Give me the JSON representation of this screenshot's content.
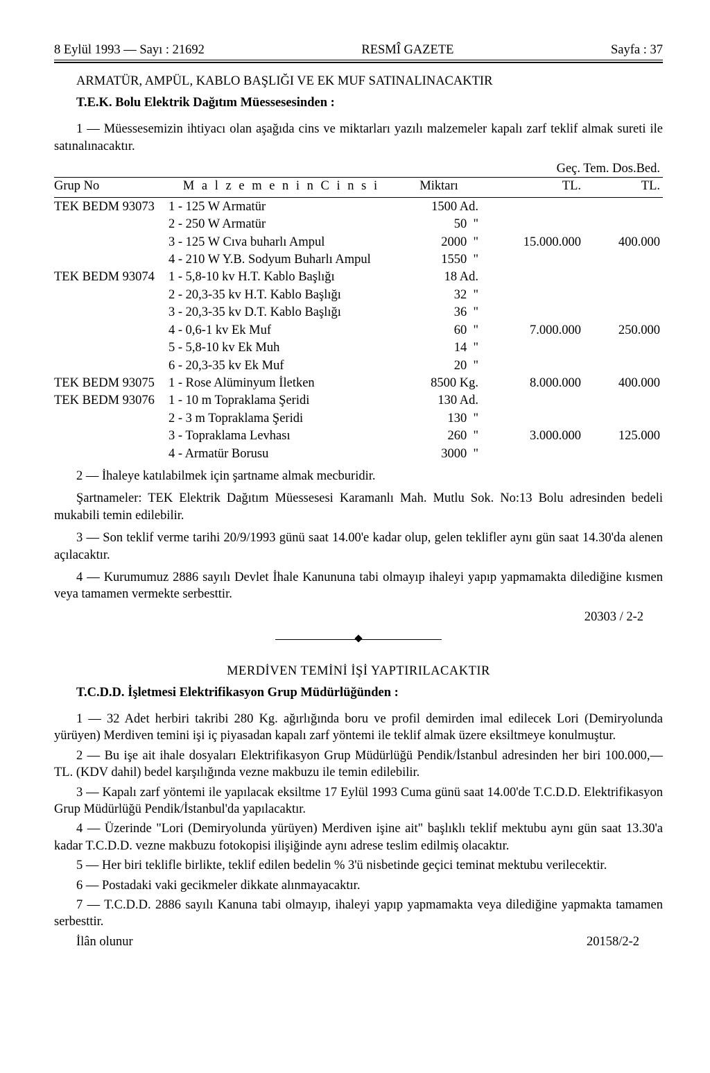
{
  "header": {
    "left": "8 Eylül 1993 — Sayı : 21692",
    "center": "RESMÎ GAZETE",
    "right": "Sayfa : 37"
  },
  "notice1": {
    "title": "ARMATÜR, AMPÜL, KABLO BAŞLIĞI VE EK MUF SATINALINACAKTIR",
    "subtitle": "T.E.K. Bolu Elektrik Dağıtım Müessesesinden :",
    "intro": "1 — Müessesemizin ihtiyacı olan aşağıda cins ve miktarları yazılı malzemeler kapalı zarf teklif almak sureti ile satınalınacaktır.",
    "tableHeader": {
      "group": "Grup No",
      "item": "M a l z e m e n i n   C i n s i",
      "qty": "Miktarı",
      "aboveRight": "Geç. Tem.   Dos.Bed.",
      "p1": "TL.",
      "p2": "TL."
    },
    "rows": [
      {
        "group": "TEK BEDM 93073",
        "item": "1 - 125 W Armatür",
        "qty": "1500 Ad.",
        "p1": "",
        "p2": ""
      },
      {
        "group": "",
        "item": "2 - 250 W Armatür",
        "qty": "50  \"",
        "p1": "",
        "p2": ""
      },
      {
        "group": "",
        "item": "3 - 125 W Cıva buharlı Ampul",
        "qty": "2000  \"",
        "p1": "15.000.000",
        "p2": "400.000"
      },
      {
        "group": "",
        "item": "4 - 210 W Y.B. Sodyum Buharlı Ampul",
        "qty": "1550  \"",
        "p1": "",
        "p2": ""
      },
      {
        "group": "TEK BEDM 93074",
        "item": "1 - 5,8-10 kv H.T. Kablo Başlığı",
        "qty": "18 Ad.",
        "p1": "",
        "p2": ""
      },
      {
        "group": "",
        "item": "2 - 20,3-35 kv H.T. Kablo Başlığı",
        "qty": "32  \"",
        "p1": "",
        "p2": ""
      },
      {
        "group": "",
        "item": "3 - 20,3-35 kv D.T. Kablo Başlığı",
        "qty": "36  \"",
        "p1": "",
        "p2": ""
      },
      {
        "group": "",
        "item": "4 - 0,6-1 kv Ek Muf",
        "qty": "60  \"",
        "p1": "7.000.000",
        "p2": "250.000"
      },
      {
        "group": "",
        "item": "5 - 5,8-10 kv Ek Muh",
        "qty": "14  \"",
        "p1": "",
        "p2": ""
      },
      {
        "group": "",
        "item": "6 - 20,3-35 kv Ek Muf",
        "qty": "20  \"",
        "p1": "",
        "p2": ""
      },
      {
        "group": "TEK BEDM 93075",
        "item": "1 - Rose Alüminyum İletken",
        "qty": "8500 Kg.",
        "p1": "8.000.000",
        "p2": "400.000"
      },
      {
        "group": "TEK BEDM 93076",
        "item": "1 - 10 m Topraklama Şeridi",
        "qty": "130 Ad.",
        "p1": "",
        "p2": ""
      },
      {
        "group": "",
        "item": "2 -  3 m Topraklama Şeridi",
        "qty": "130  \"",
        "p1": "",
        "p2": ""
      },
      {
        "group": "",
        "item": "3 - Topraklama Levhası",
        "qty": "260  \"",
        "p1": "3.000.000",
        "p2": "125.000"
      },
      {
        "group": "",
        "item": "4 - Armatür Borusu",
        "qty": "3000  \"",
        "p1": "",
        "p2": ""
      }
    ],
    "p2": "2 — İhaleye katılabilmek için şartname almak mecburidir.",
    "p3": "Şartnameler: TEK Elektrik Dağıtım Müessesesi Karamanlı Mah. Mutlu Sok. No:13 Bolu adresinden bedeli mukabili temin edilebilir.",
    "p4": "3 — Son teklif verme tarihi 20/9/1993 günü saat 14.00'e kadar olup, gelen teklifler aynı gün saat 14.30'da alenen açılacaktır.",
    "p5": "4 — Kurumumuz 2886 sayılı Devlet İhale Kanununa tabi olmayıp ihaleyi yapıp yapmamakta dilediğine kısmen veya tamamen vermekte serbesttir.",
    "ref": "20303 / 2-2"
  },
  "notice2": {
    "title": "MERDİVEN TEMİNİ İŞİ YAPTIRILACAKTIR",
    "subtitle": "T.C.D.D. İşletmesi Elektrifikasyon Grup Müdürlüğünden :",
    "p1": "1 — 32 Adet herbiri takribi 280 Kg. ağırlığında boru ve profil demirden imal edilecek Lori (Demiryolunda yürüyen) Merdiven temini işi iç piyasadan kapalı zarf yöntemi ile teklif almak üzere eksiltmeye konulmuştur.",
    "p2": "2 — Bu işe ait ihale dosyaları Elektrifikasyon Grup Müdürlüğü Pendik/İstanbul adresinden her biri 100.000,— TL. (KDV dahil) bedel karşılığında vezne makbuzu ile temin edilebilir.",
    "p3": "3 — Kapalı zarf yöntemi ile yapılacak eksiltme 17 Eylül 1993 Cuma günü saat 14.00'de T.C.D.D. Elektrifikasyon Grup Müdürlüğü Pendik/İstanbul'da yapılacaktır.",
    "p4": "4 — Üzerinde \"Lori (Demiryolunda yürüyen) Merdiven işine ait\" başlıklı teklif mektubu aynı gün saat 13.30'a kadar T.C.D.D. vezne makbuzu fotokopisi ilişiğinde aynı adrese teslim edilmiş olacaktır.",
    "p5": "5 — Her biri teklifle birlikte, teklif edilen bedelin % 3'ü nisbetinde geçici teminat mektubu verilecektir.",
    "p6": "6 — Postadaki vaki gecikmeler dikkate alınmayacaktır.",
    "p7": "7 — T.C.D.D. 2886 sayılı Kanuna tabi olmayıp, ihaleyi yapıp yapmamakta veya dilediğine yapmakta tamamen serbesttir.",
    "p8": "İlân olunur",
    "ref": "20158/2-2"
  }
}
